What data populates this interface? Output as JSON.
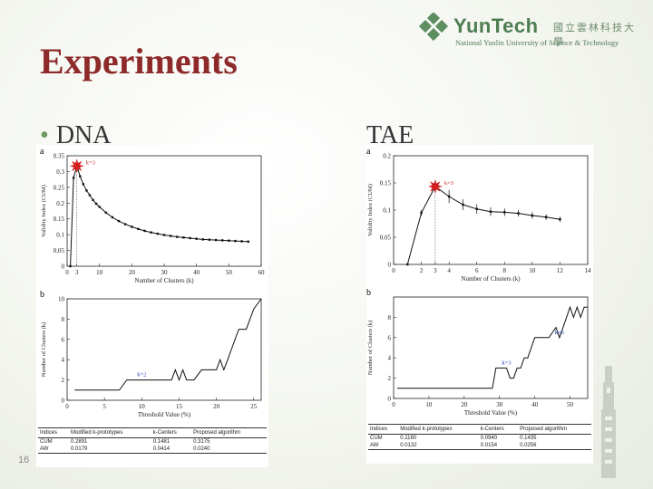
{
  "header": {
    "logo_text": "YunTech",
    "logo_cn": "國立雲林科技大學",
    "logo_sub": "National Yunlin University of Science & Technology",
    "title": "Experiments",
    "page_number": "16"
  },
  "bullets": {
    "left": "DNA",
    "right": "TAE"
  },
  "colors": {
    "title": "#8e2a2a",
    "accent_star": "#d11f1f",
    "annotation": "#1f3fbf",
    "logo": "#4e7d52"
  },
  "chart_data": [
    {
      "id": "dna-a",
      "type": "line",
      "panel_label": "a",
      "xlabel": "Number of Clusters (k)",
      "ylabel": "Validity Index (CUM)",
      "xlim": [
        0,
        60
      ],
      "ylim": [
        0,
        0.35
      ],
      "xticks": [
        "0",
        "3",
        "10",
        "20",
        "30",
        "40",
        "50",
        "60"
      ],
      "xtick_values": [
        0,
        3,
        10,
        20,
        30,
        40,
        50,
        60
      ],
      "yticks": [
        "0",
        "0.05",
        "0.1",
        "0.15",
        "0.2",
        "0.25",
        "0.3",
        "0.35"
      ],
      "ytick_values": [
        0,
        0.05,
        0.1,
        0.15,
        0.2,
        0.25,
        0.3,
        0.35
      ],
      "x": [
        1,
        2,
        3,
        4,
        5,
        6,
        7,
        8,
        9,
        10,
        12,
        14,
        16,
        18,
        20,
        22,
        24,
        26,
        28,
        30,
        32,
        34,
        36,
        38,
        40,
        42,
        44,
        46,
        48,
        50,
        52,
        54,
        56
      ],
      "y": [
        0,
        0.28,
        0.3175,
        0.285,
        0.26,
        0.24,
        0.225,
        0.21,
        0.198,
        0.188,
        0.17,
        0.155,
        0.143,
        0.133,
        0.125,
        0.118,
        0.112,
        0.107,
        0.103,
        0.099,
        0.096,
        0.093,
        0.091,
        0.089,
        0.087,
        0.085,
        0.084,
        0.083,
        0.082,
        0.081,
        0.08,
        0.079,
        0.078
      ],
      "highlight": {
        "x": 3,
        "y": 0.3175,
        "label": "k=3"
      }
    },
    {
      "id": "dna-b",
      "type": "line",
      "panel_label": "b",
      "xlabel": "Threshold Value (%)",
      "ylabel": "Number of Clusters (k)",
      "xlim": [
        0,
        26
      ],
      "ylim": [
        0,
        10
      ],
      "xticks": [
        "0",
        "5",
        "10",
        "15",
        "20",
        "25"
      ],
      "xtick_values": [
        0,
        5,
        10,
        15,
        20,
        25
      ],
      "yticks": [
        "0",
        "2",
        "4",
        "6",
        "8",
        "10"
      ],
      "ytick_values": [
        0,
        2,
        4,
        6,
        8,
        10
      ],
      "x": [
        1,
        2,
        3,
        4,
        5,
        6,
        7,
        8,
        9,
        10,
        11,
        12,
        13,
        14,
        14.5,
        15,
        15.5,
        16,
        17,
        18,
        19,
        20,
        20.5,
        21,
        21.5,
        22,
        23,
        24,
        25,
        26
      ],
      "y": [
        1,
        1,
        1,
        1,
        1,
        1,
        1,
        2,
        2,
        2,
        2,
        2,
        2,
        2,
        3,
        2,
        3,
        2,
        2,
        3,
        3,
        3,
        4,
        3,
        4,
        5,
        7,
        7,
        9,
        10
      ],
      "annotation": {
        "x": 10,
        "y": 2,
        "label": "k=2"
      }
    },
    {
      "id": "tae-a",
      "type": "line",
      "panel_label": "a",
      "xlabel": "Number of Clusters (k)",
      "ylabel": "Validity Index (CUM)",
      "xlim": [
        0,
        14
      ],
      "ylim": [
        0,
        0.2
      ],
      "xticks": [
        "0",
        "2",
        "3",
        "4",
        "6",
        "8",
        "10",
        "12",
        "14"
      ],
      "xtick_values": [
        0,
        2,
        3,
        4,
        6,
        8,
        10,
        12,
        14
      ],
      "yticks": [
        "0",
        "0.05",
        "0.1",
        "0.15",
        "0.2"
      ],
      "ytick_values": [
        0,
        0.05,
        0.1,
        0.15,
        0.2
      ],
      "x": [
        1,
        2,
        3,
        4,
        5,
        6,
        7,
        8,
        9,
        10,
        11,
        12
      ],
      "y": [
        0,
        0.095,
        0.1435,
        0.125,
        0.11,
        0.102,
        0.097,
        0.096,
        0.094,
        0.09,
        0.087,
        0.083
      ],
      "error": [
        0,
        0.005,
        0,
        0.012,
        0.01,
        0.009,
        0.008,
        0.007,
        0.006,
        0.006,
        0.005,
        0.005
      ],
      "highlight": {
        "x": 3,
        "y": 0.1435,
        "label": "k=3"
      }
    },
    {
      "id": "tae-b",
      "type": "line",
      "panel_label": "b",
      "xlabel": "Threshold Value (%)",
      "ylabel": "Number of Clusters (k)",
      "xlim": [
        0,
        55
      ],
      "ylim": [
        0,
        10
      ],
      "xticks": [
        "0",
        "10",
        "20",
        "30",
        "40",
        "50"
      ],
      "xtick_values": [
        0,
        10,
        20,
        30,
        40,
        50
      ],
      "yticks": [
        "0",
        "2",
        "4",
        "6",
        "8"
      ],
      "ytick_values": [
        0,
        2,
        4,
        6,
        8
      ],
      "x": [
        1,
        5,
        10,
        15,
        20,
        25,
        28,
        29,
        30,
        31,
        32,
        33,
        34,
        35,
        36,
        37,
        38,
        40,
        42,
        44,
        46,
        47,
        48,
        49,
        50,
        51,
        52,
        53,
        54,
        55
      ],
      "y": [
        1,
        1,
        1,
        1,
        1,
        1,
        1,
        3,
        3,
        3,
        3,
        2,
        2,
        3,
        3,
        4,
        4,
        6,
        6,
        6,
        7,
        6,
        7,
        8,
        9,
        8,
        9,
        8,
        9,
        9
      ],
      "annotation_1": {
        "x": 32,
        "y": 3,
        "label": "k=3"
      },
      "annotation_2": {
        "x": 47,
        "y": 6,
        "label": "k=6"
      }
    },
    {
      "id": "dna-table",
      "type": "table",
      "columns": [
        "Indices",
        "Modified k-prototypes",
        "k-Centers",
        "Proposed algorithm"
      ],
      "rows": [
        [
          "CUM",
          "0.2891",
          "0.1481",
          "0.3175"
        ],
        [
          "AW",
          "0.0179",
          "0.0414",
          "0.0240"
        ]
      ]
    },
    {
      "id": "tae-table",
      "type": "table",
      "columns": [
        "Indices",
        "Modified k-prototypes",
        "k-Centers",
        "Proposed algorithm"
      ],
      "rows": [
        [
          "CUM",
          "0.1160",
          "0.0940",
          "0.1435"
        ],
        [
          "AW",
          "0.0132",
          "0.0154",
          "0.0256"
        ]
      ]
    }
  ]
}
